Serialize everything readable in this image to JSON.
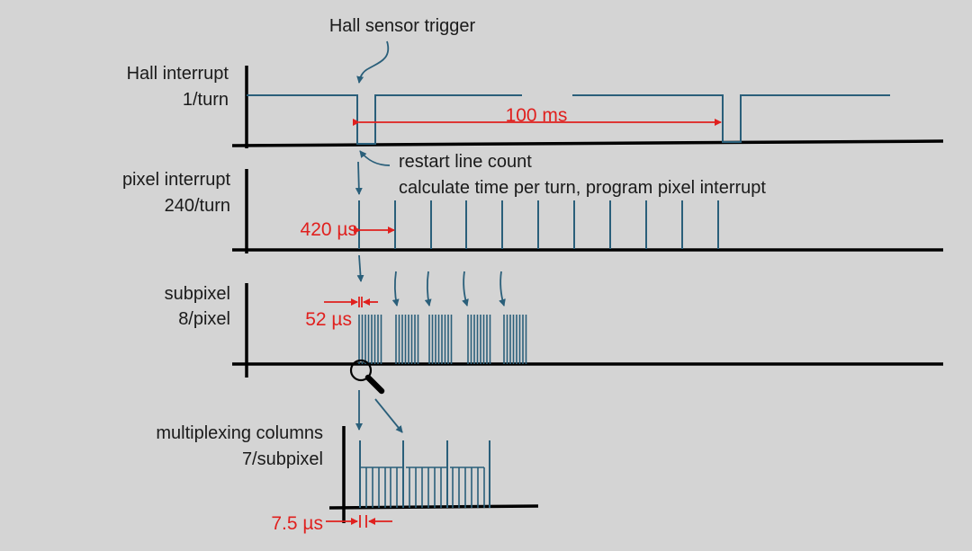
{
  "title": "Hall sensor trigger",
  "rows": {
    "hall": {
      "line1": "Hall interrupt",
      "line2": "1/turn"
    },
    "pixel": {
      "line1": "pixel interrupt",
      "line2": "240/turn"
    },
    "subpixel": {
      "line1": "subpixel",
      "line2": "8/pixel"
    },
    "mux": {
      "line1": "multiplexing columns",
      "line2": "7/subpixel"
    }
  },
  "notes": {
    "line1": "restart line count",
    "line2": "calculate time per turn, program pixel interrupt"
  },
  "timings": {
    "period": "100 ms",
    "pixel_interval": "420 µs",
    "subpixel_interval": "52 µs",
    "column_interval": "7.5 µs"
  },
  "colors": {
    "signal": "#2a5f7a",
    "axis": "#000000",
    "annotation": "#e0201e",
    "background": "#d4d4d4"
  },
  "icons": {
    "zoom": "magnifier-icon"
  }
}
